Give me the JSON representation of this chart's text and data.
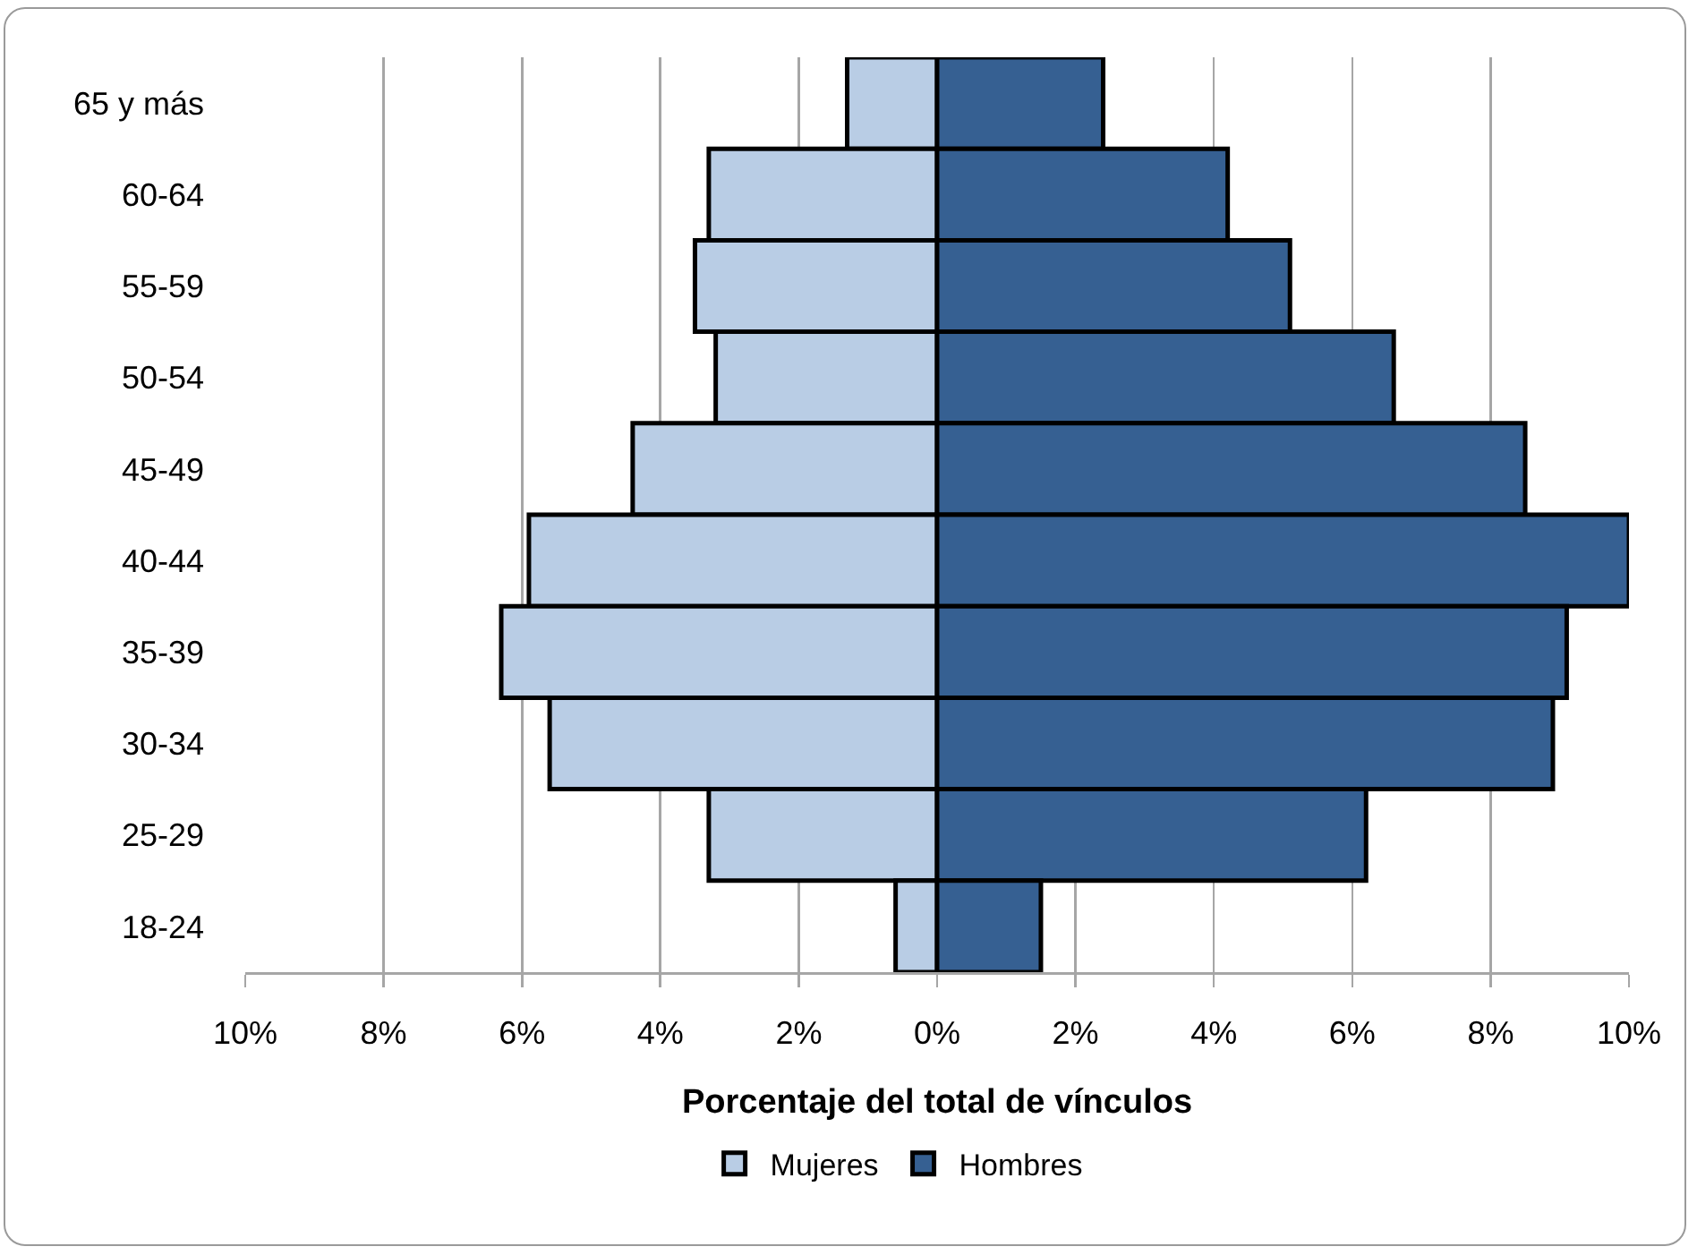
{
  "chart_data": {
    "type": "bar",
    "orientation": "horizontal",
    "stacked": true,
    "xlabel": "Porcentaje del total de vínculos",
    "categories": [
      "65 y más",
      "60-64",
      "55-59",
      "50-54",
      "45-49",
      "40-44",
      "35-39",
      "30-34",
      "25-29",
      "18-24"
    ],
    "series": [
      {
        "name": "Mujeres",
        "color": "#b9cde5",
        "values": [
          -1.3,
          -3.3,
          -3.5,
          -3.2,
          -4.4,
          -5.9,
          -6.3,
          -5.6,
          -3.3,
          -0.6
        ]
      },
      {
        "name": "Hombres",
        "color": "#366092",
        "values": [
          2.4,
          4.2,
          5.1,
          6.6,
          8.5,
          10.0,
          9.1,
          8.9,
          6.2,
          1.5
        ]
      }
    ],
    "xlim": [
      -10,
      10
    ],
    "xticks": [
      {
        "value": -10,
        "label": "10%"
      },
      {
        "value": -8,
        "label": "8%"
      },
      {
        "value": -6,
        "label": "6%"
      },
      {
        "value": -4,
        "label": "4%"
      },
      {
        "value": -2,
        "label": "2%"
      },
      {
        "value": 0,
        "label": "0%"
      },
      {
        "value": 2,
        "label": "2%"
      },
      {
        "value": 4,
        "label": "4%"
      },
      {
        "value": 6,
        "label": "6%"
      },
      {
        "value": 8,
        "label": "8%"
      },
      {
        "value": 10,
        "label": "10%"
      }
    ],
    "grid": "x",
    "legend": "bottom"
  }
}
